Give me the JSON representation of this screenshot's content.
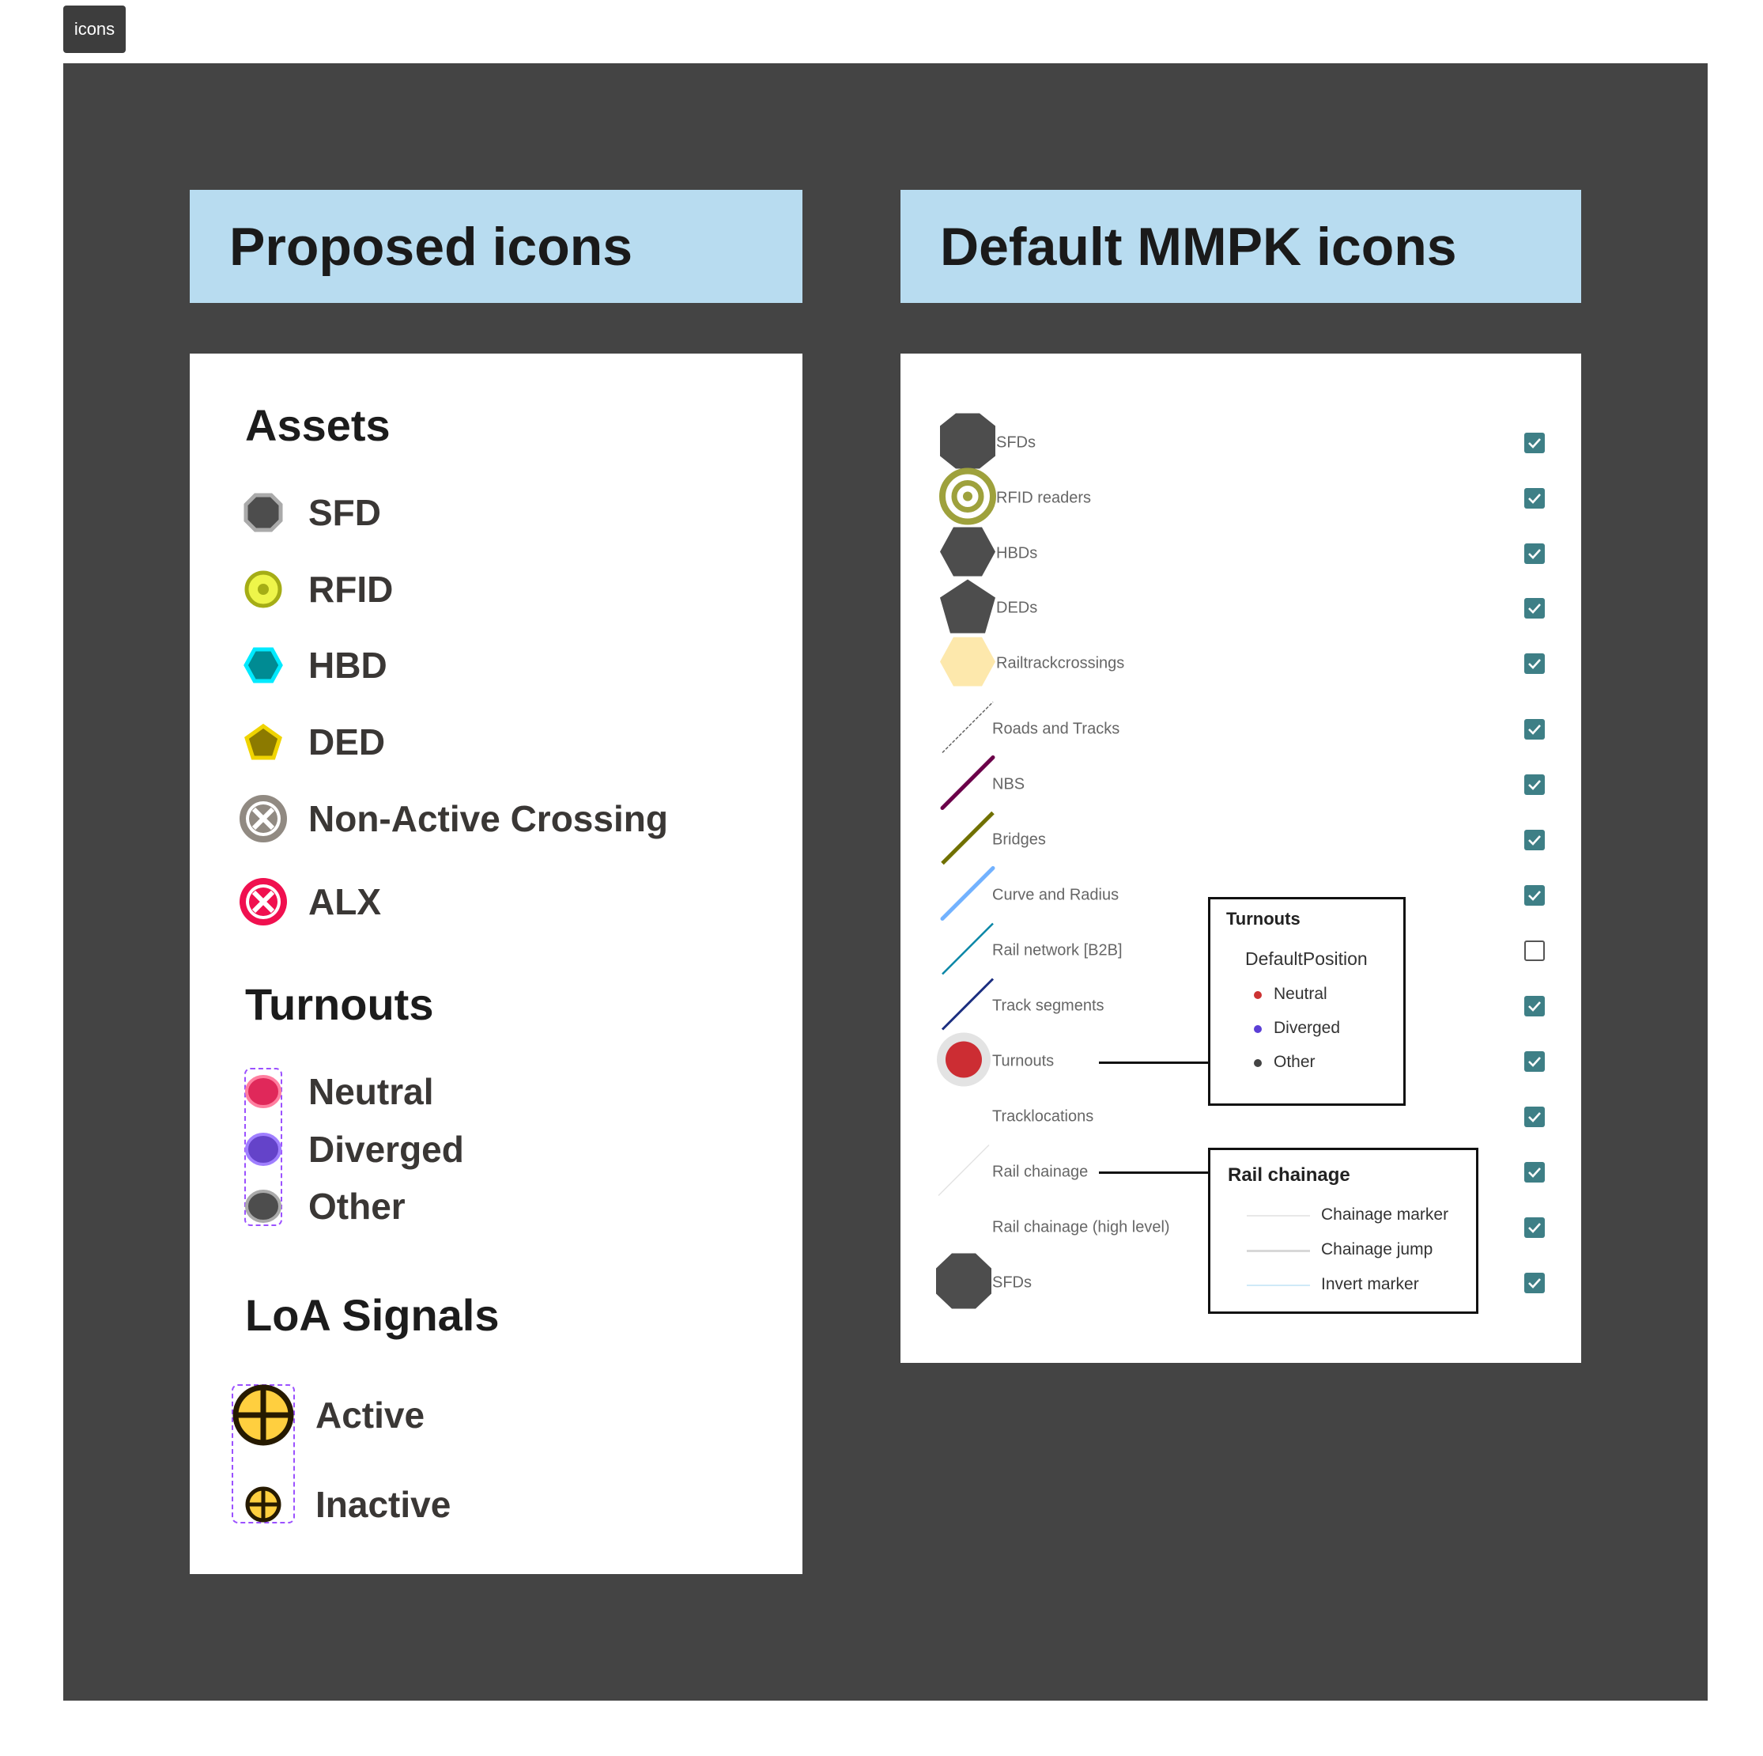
{
  "tag": "icons",
  "left": {
    "title": "Proposed icons",
    "sections": {
      "assets": "Assets",
      "turnouts": "Turnouts",
      "loa": "LoA Signals"
    },
    "assets": [
      "SFD",
      "RFID",
      "HBD",
      "DED",
      "Non-Active Crossing",
      "ALX"
    ],
    "turnouts": [
      "Neutral",
      "Diverged",
      "Other"
    ],
    "loa": [
      "Active",
      "Inactive"
    ]
  },
  "right": {
    "title": "Default MMPK icons",
    "layers": [
      {
        "label": "SFDs",
        "icon": "octagon-icon",
        "checked": true
      },
      {
        "label": "RFID readers",
        "icon": "target-icon",
        "checked": true
      },
      {
        "label": "HBDs",
        "icon": "hexagon-icon",
        "checked": true
      },
      {
        "label": "DEDs",
        "icon": "pentagon-icon",
        "checked": true
      },
      {
        "label": "Railtrackcrossings",
        "icon": "hexagon-icon",
        "checked": true
      },
      {
        "label": "Roads and Tracks",
        "icon": "dashed-line-icon",
        "checked": true
      },
      {
        "label": "NBS",
        "icon": "line-icon",
        "checked": true
      },
      {
        "label": "Bridges",
        "icon": "line-icon",
        "checked": true
      },
      {
        "label": "Curve and Radius",
        "icon": "line-icon",
        "checked": true
      },
      {
        "label": "Rail network [B2B]",
        "icon": "line-icon",
        "checked": false
      },
      {
        "label": "Track segments",
        "icon": "line-icon",
        "checked": true
      },
      {
        "label": "Turnouts",
        "icon": "circle-icon",
        "checked": true
      },
      {
        "label": "Tracklocations",
        "icon": "none",
        "checked": true
      },
      {
        "label": "Rail chainage",
        "icon": "line-icon",
        "checked": true
      },
      {
        "label": "Rail chainage (high level)",
        "icon": "none",
        "checked": true
      },
      {
        "label": "SFDs",
        "icon": "octagon-icon",
        "checked": true
      }
    ],
    "turnouts_box": {
      "title": "Turnouts",
      "subtitle": "DefaultPosition",
      "items": [
        "Neutral",
        "Diverged",
        "Other"
      ]
    },
    "chainage_box": {
      "title": "Rail chainage",
      "items": [
        "Chainage marker",
        "Chainage jump",
        "Invert marker"
      ]
    }
  },
  "colors": {
    "header": "#b8dcf0",
    "frame": "#444444",
    "checkbox": "#3e7f86"
  }
}
